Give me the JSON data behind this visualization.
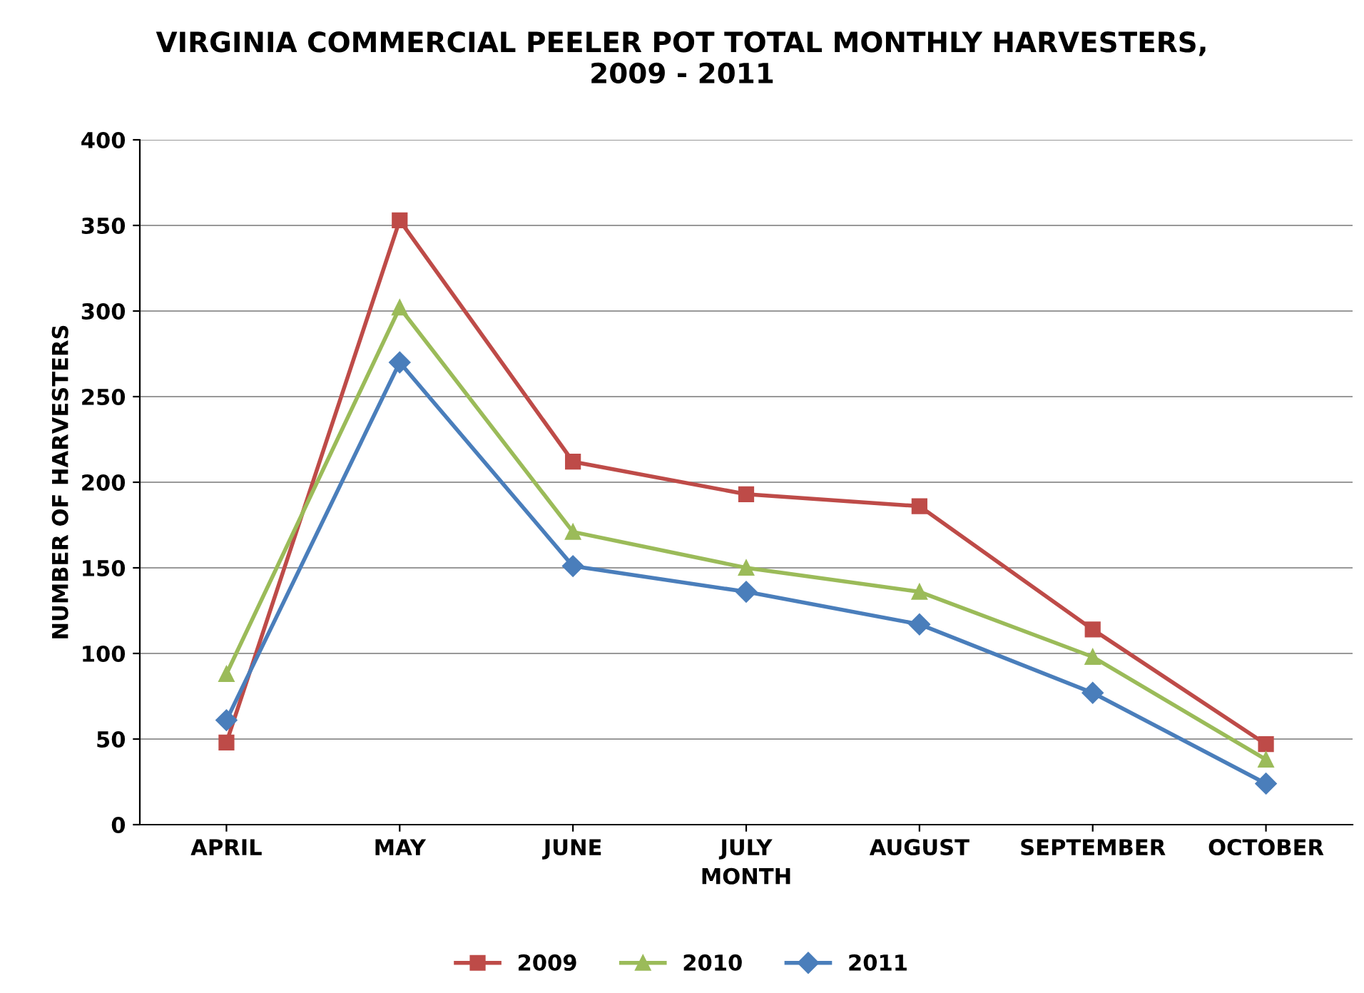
{
  "chart_data": {
    "type": "line",
    "title": "VIRGINIA COMMERCIAL PEELER POT TOTAL MONTHLY HARVESTERS,\n2009 - 2011",
    "xlabel": "MONTH",
    "ylabel": "NUMBER OF HARVESTERS",
    "categories": [
      "APRIL",
      "MAY",
      "JUNE",
      "JULY",
      "AUGUST",
      "SEPTEMBER",
      "OCTOBER"
    ],
    "series": [
      {
        "name": "2009",
        "color": "#be4b48",
        "marker": "square",
        "values": [
          48,
          353,
          212,
          193,
          186,
          114,
          47
        ]
      },
      {
        "name": "2010",
        "color": "#9bbb59",
        "marker": "triangle",
        "values": [
          88,
          302,
          171,
          150,
          136,
          98,
          38
        ]
      },
      {
        "name": "2011",
        "color": "#4a7ebb",
        "marker": "diamond",
        "values": [
          61,
          270,
          151,
          136,
          117,
          77,
          24
        ]
      }
    ],
    "ylim": [
      0,
      400
    ],
    "yticks": [
      0,
      50,
      100,
      150,
      200,
      250,
      300,
      350,
      400
    ],
    "grid": "y",
    "legend": "bottom",
    "line_style": "solid"
  }
}
